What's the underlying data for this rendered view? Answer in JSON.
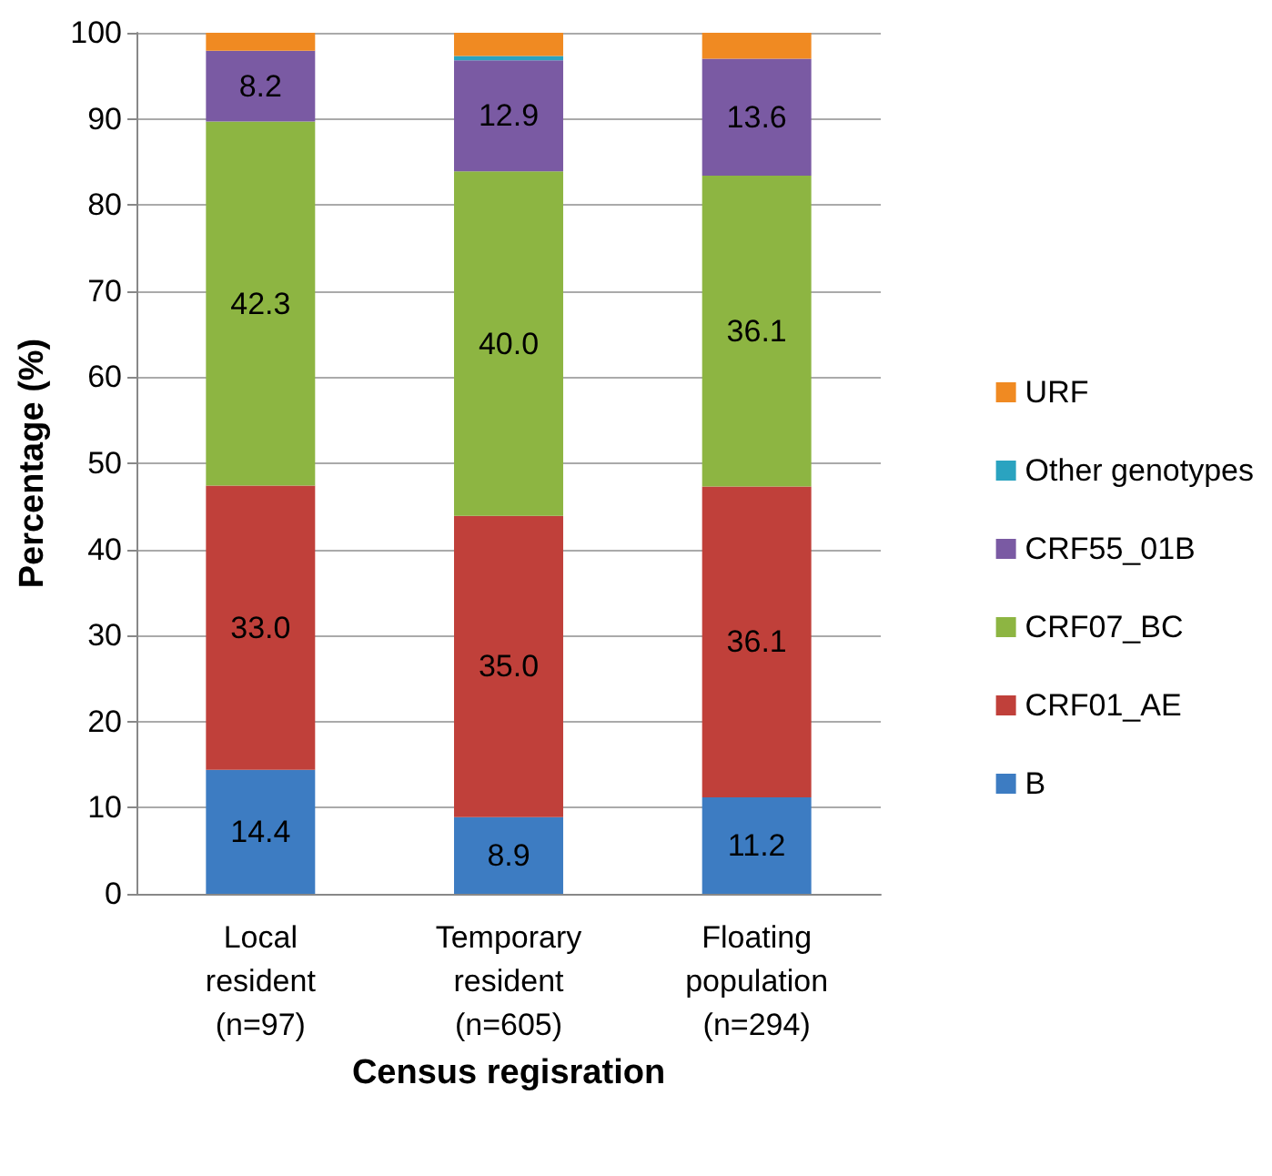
{
  "chart_data": {
    "type": "bar",
    "stacked": true,
    "xlabel": "Census regisration",
    "ylabel": "Percentage (%)",
    "categories": [
      "Local\nresident\n(n=97)",
      "Temporary\nresident\n(n=605)",
      "Floating\npopulation\n(n=294)"
    ],
    "series": [
      {
        "name": "B",
        "color": "#3d7cc2",
        "values": [
          14.4,
          8.9,
          11.2
        ],
        "value_labels": [
          "14.4",
          "8.9",
          "11.2"
        ]
      },
      {
        "name": "CRF01_AE",
        "color": "#c0403a",
        "values": [
          33.0,
          35.0,
          36.1
        ],
        "value_labels": [
          "33.0",
          "35.0",
          "36.1"
        ]
      },
      {
        "name": "CRF07_BC",
        "color": "#8db542",
        "values": [
          42.3,
          40.0,
          36.1
        ],
        "value_labels": [
          "42.3",
          "40.0",
          "36.1"
        ]
      },
      {
        "name": "CRF55_01B",
        "color": "#7a5aa3",
        "values": [
          8.2,
          12.9,
          13.6
        ],
        "value_labels": [
          "8.2",
          "12.9",
          "13.6"
        ]
      },
      {
        "name": "Other genotypes",
        "color": "#2aa3c0",
        "values": [
          0,
          0.5,
          0
        ],
        "value_labels": [
          null,
          null,
          null
        ]
      },
      {
        "name": "URF",
        "color": "#f08a22",
        "values": [
          2.1,
          2.7,
          3.0
        ],
        "value_labels": [
          null,
          null,
          null
        ]
      }
    ],
    "ylim": [
      0,
      100
    ],
    "yticks": [
      0,
      10,
      20,
      30,
      40,
      50,
      60,
      70,
      80,
      90,
      100
    ],
    "grid": "y",
    "legend": "right"
  }
}
